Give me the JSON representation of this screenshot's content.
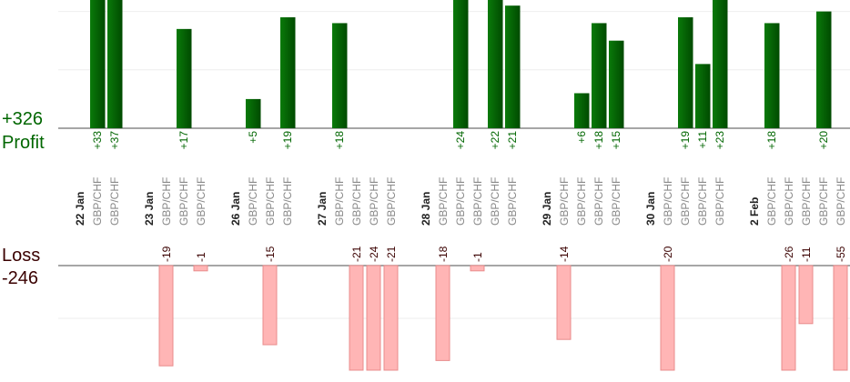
{
  "summary": {
    "profit_total": "+326",
    "profit_label": "Profit",
    "loss_label": "Loss",
    "loss_total": "-246"
  },
  "colors": {
    "profit_text": "#006600",
    "loss_text": "#3a0000",
    "profit_bar_light": "#0a7a0a",
    "profit_bar_dark": "#004a00",
    "loss_bar": "#ffb5b5",
    "loss_bar_border": "#e88c8c",
    "axis": "#888888",
    "grid": "#eeeeee"
  },
  "chart_data": {
    "type": "bar",
    "title": "",
    "profit_grid_step": 10,
    "loss_grid_step": 10,
    "groups": [
      {
        "date": "22 Jan",
        "trades": [
          {
            "pair": "GBP/CHF",
            "value": 33
          },
          {
            "pair": "GBP/CHF",
            "value": 37
          }
        ]
      },
      {
        "date": "23 Jan",
        "trades": [
          {
            "pair": "GBP/CHF",
            "value": -19
          },
          {
            "pair": "GBP/CHF",
            "value": 17
          },
          {
            "pair": "GBP/CHF",
            "value": -1
          }
        ]
      },
      {
        "date": "26 Jan",
        "trades": [
          {
            "pair": "GBP/CHF",
            "value": 5
          },
          {
            "pair": "GBP/CHF",
            "value": -15
          },
          {
            "pair": "GBP/CHF",
            "value": 19
          }
        ]
      },
      {
        "date": "27 Jan",
        "trades": [
          {
            "pair": "GBP/CHF",
            "value": 18
          },
          {
            "pair": "GBP/CHF",
            "value": -21
          },
          {
            "pair": "GBP/CHF",
            "value": -24
          },
          {
            "pair": "GBP/CHF",
            "value": -21
          }
        ]
      },
      {
        "date": "28 Jan",
        "trades": [
          {
            "pair": "GBP/CHF",
            "value": -18
          },
          {
            "pair": "GBP/CHF",
            "value": 24
          },
          {
            "pair": "GBP/CHF",
            "value": -1
          },
          {
            "pair": "GBP/CHF",
            "value": 22
          },
          {
            "pair": "GBP/CHF",
            "value": 21
          }
        ]
      },
      {
        "date": "29 Jan",
        "trades": [
          {
            "pair": "GBP/CHF",
            "value": -14
          },
          {
            "pair": "GBP/CHF",
            "value": 6
          },
          {
            "pair": "GBP/CHF",
            "value": 18
          },
          {
            "pair": "GBP/CHF",
            "value": 15
          }
        ]
      },
      {
        "date": "30 Jan",
        "trades": [
          {
            "pair": "GBP/CHF",
            "value": -20
          },
          {
            "pair": "GBP/CHF",
            "value": 19
          },
          {
            "pair": "GBP/CHF",
            "value": 11
          },
          {
            "pair": "GBP/CHF",
            "value": 23
          }
        ]
      },
      {
        "date": "2 Feb",
        "trades": [
          {
            "pair": "GBP/CHF",
            "value": 18
          },
          {
            "pair": "GBP/CHF",
            "value": -26
          },
          {
            "pair": "GBP/CHF",
            "value": -11
          },
          {
            "pair": "GBP/CHF",
            "value": 20
          },
          {
            "pair": "GBP/CHF",
            "value": -55
          }
        ]
      }
    ]
  }
}
